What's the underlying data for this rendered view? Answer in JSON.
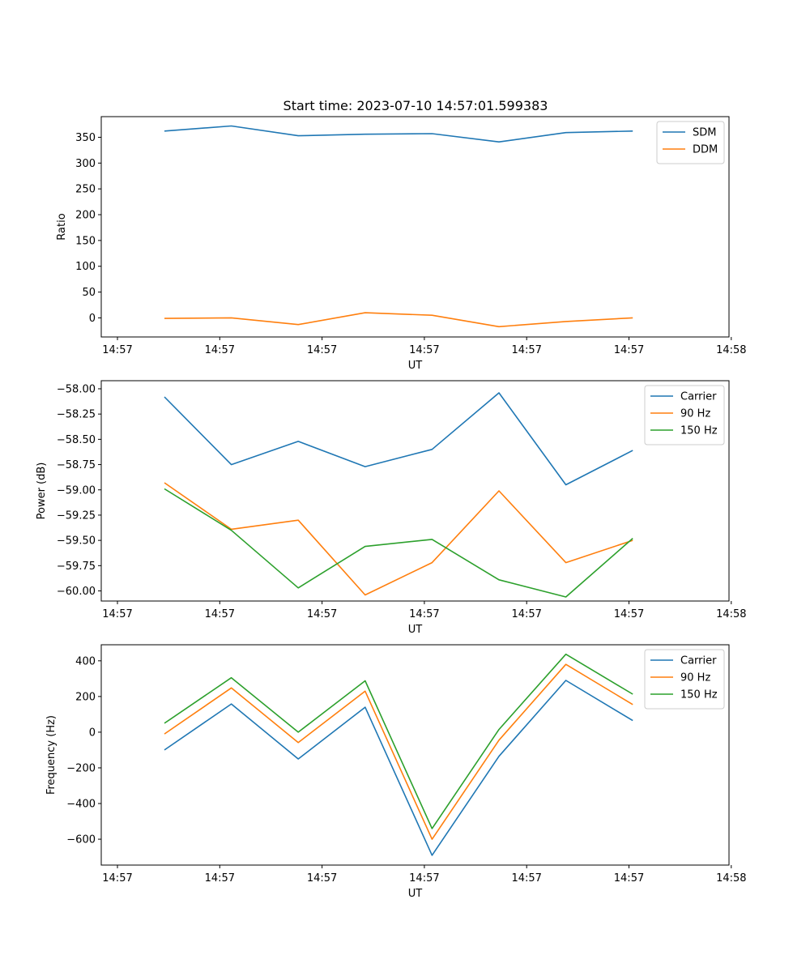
{
  "figure_title": "Start time: 2023-07-10 14:57:01.599383",
  "chart_data": [
    {
      "type": "line",
      "xlabel": "UT",
      "ylabel": "Ratio",
      "x_tick_labels": [
        "14:57",
        "14:57",
        "14:57",
        "14:57",
        "14:57",
        "14:57",
        "14:58"
      ],
      "x_point_count": 8,
      "ylim": [
        -37,
        390
      ],
      "y_ticks": [
        0,
        50,
        100,
        150,
        200,
        250,
        300,
        350
      ],
      "y_tick_labels": [
        "0",
        "50",
        "100",
        "150",
        "200",
        "250",
        "300",
        "350"
      ],
      "legend": "top-right",
      "series": [
        {
          "name": "SDM",
          "color": "#1f77b4",
          "values": [
            362,
            372,
            353,
            356,
            357,
            341,
            359,
            362
          ]
        },
        {
          "name": "DDM",
          "color": "#ff7f0e",
          "values": [
            -1,
            0,
            -13,
            10,
            5,
            -17,
            -7,
            0
          ]
        }
      ]
    },
    {
      "type": "line",
      "xlabel": "UT",
      "ylabel": "Power (dB)",
      "x_tick_labels": [
        "14:57",
        "14:57",
        "14:57",
        "14:57",
        "14:57",
        "14:57",
        "14:58"
      ],
      "x_point_count": 8,
      "ylim": [
        -60.1,
        -57.92
      ],
      "y_ticks": [
        -60.0,
        -59.75,
        -59.5,
        -59.25,
        -59.0,
        -58.75,
        -58.5,
        -58.25,
        -58.0
      ],
      "y_tick_labels": [
        "−60.00",
        "−59.75",
        "−59.50",
        "−59.25",
        "−59.00",
        "−58.75",
        "−58.50",
        "−58.25",
        "−58.00"
      ],
      "legend": "top-right",
      "series": [
        {
          "name": "Carrier",
          "color": "#1f77b4",
          "values": [
            -58.08,
            -58.75,
            -58.52,
            -58.77,
            -58.6,
            -58.04,
            -58.95,
            -58.61
          ]
        },
        {
          "name": "90 Hz",
          "color": "#ff7f0e",
          "values": [
            -58.93,
            -59.39,
            -59.3,
            -60.04,
            -59.72,
            -59.01,
            -59.72,
            -59.5
          ]
        },
        {
          "name": "150 Hz",
          "color": "#2ca02c",
          "values": [
            -58.99,
            -59.4,
            -59.97,
            -59.56,
            -59.49,
            -59.89,
            -60.06,
            -59.48
          ]
        }
      ]
    },
    {
      "type": "line",
      "xlabel": "UT",
      "ylabel": "Frequency (Hz)",
      "x_tick_labels": [
        "14:57",
        "14:57",
        "14:57",
        "14:57",
        "14:57",
        "14:57",
        "14:58"
      ],
      "x_point_count": 8,
      "ylim": [
        -745,
        490
      ],
      "y_ticks": [
        -600,
        -400,
        -200,
        0,
        200,
        400
      ],
      "y_tick_labels": [
        "−600",
        "−400",
        "−200",
        "0",
        "200",
        "400"
      ],
      "legend": "top-right",
      "series": [
        {
          "name": "Carrier",
          "color": "#1f77b4",
          "values": [
            -100,
            158,
            -150,
            140,
            -690,
            -135,
            290,
            65
          ]
        },
        {
          "name": "90 Hz",
          "color": "#ff7f0e",
          "values": [
            -10,
            248,
            -58,
            230,
            -600,
            -45,
            380,
            155
          ]
        },
        {
          "name": "150 Hz",
          "color": "#2ca02c",
          "values": [
            50,
            305,
            0,
            288,
            -540,
            15,
            437,
            213
          ]
        }
      ]
    }
  ]
}
